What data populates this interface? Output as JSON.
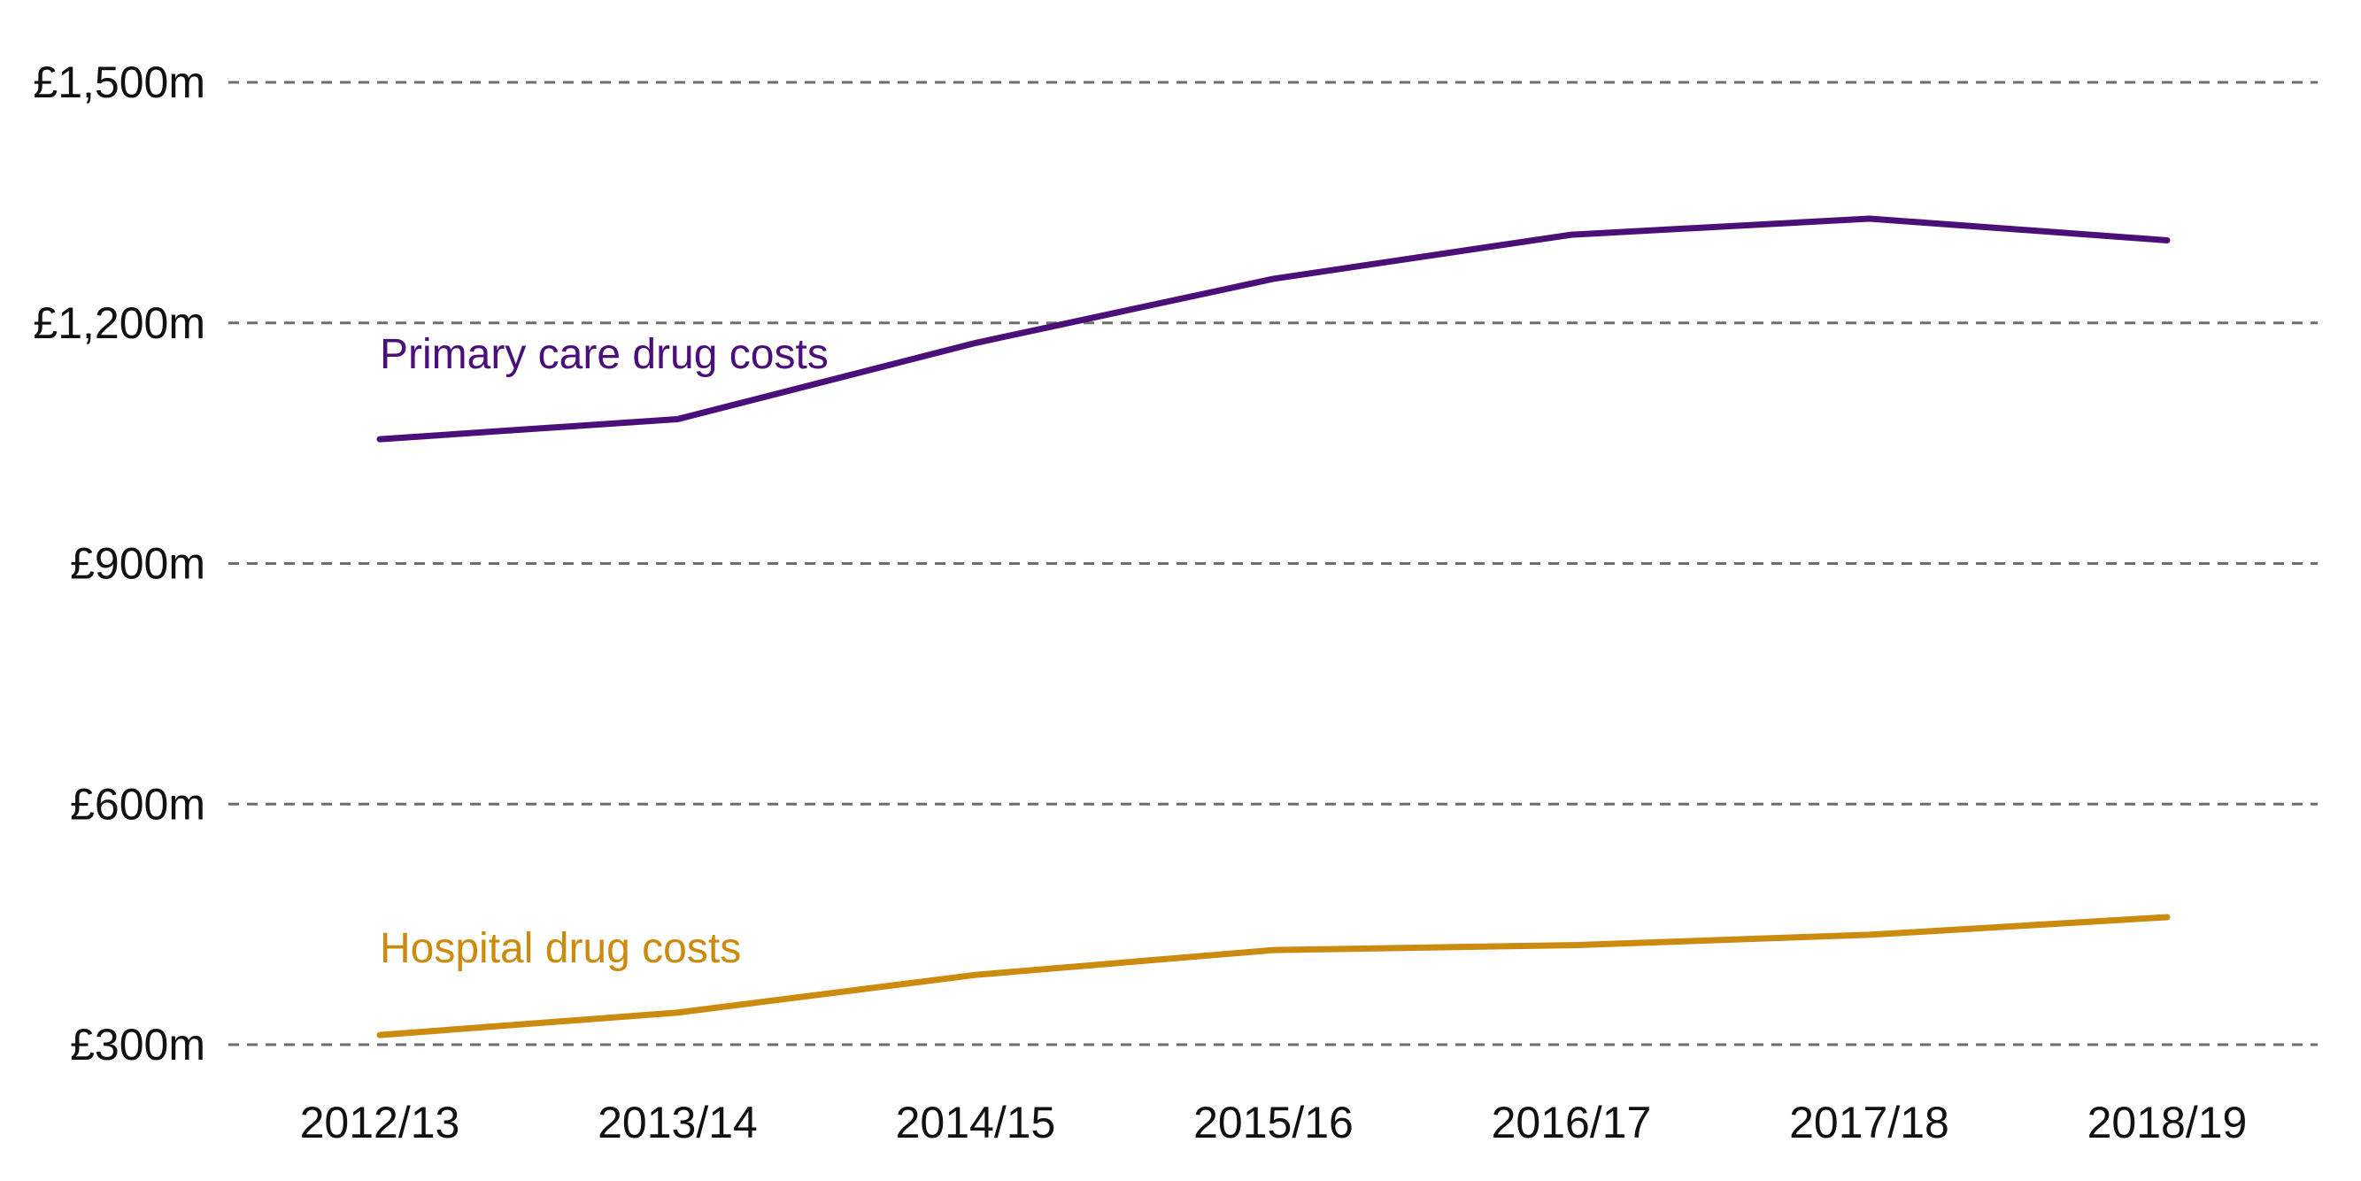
{
  "chart_data": {
    "type": "line",
    "title": "",
    "xlabel": "",
    "ylabel": "",
    "categories": [
      "2012/13",
      "2013/14",
      "2014/15",
      "2015/16",
      "2016/17",
      "2017/18",
      "2018/19"
    ],
    "ylim": [
      300,
      1500
    ],
    "y_ticks": [
      300,
      600,
      900,
      1200,
      1500
    ],
    "y_tick_labels": [
      "£300m",
      "£600m",
      "£900m",
      "£1,200m",
      "£1,500m"
    ],
    "grid": true,
    "grid_style": "dashed horizontal",
    "legend": "inline labels",
    "series": [
      {
        "name": "Primary care drug costs",
        "color": "#4b0f7a",
        "values": [
          1055,
          1080,
          1175,
          1255,
          1310,
          1330,
          1303
        ]
      },
      {
        "name": "Hospital drug costs",
        "color": "#cc8a0e",
        "values": [
          312,
          340,
          387,
          418,
          424,
          437,
          459
        ]
      }
    ]
  }
}
